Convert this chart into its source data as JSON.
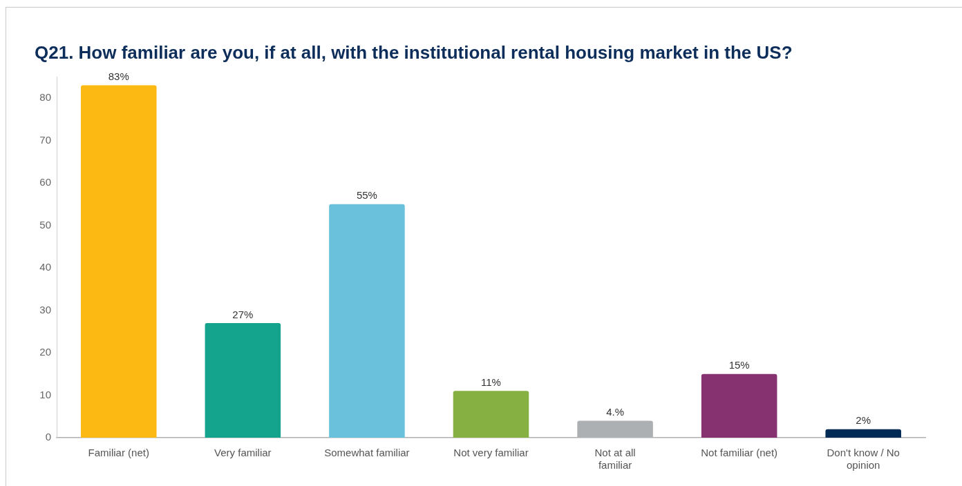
{
  "chart_data": {
    "type": "bar",
    "title": "Q21. How familiar are you, if at all, with the institutional rental housing market in the US?",
    "categories": [
      "Familiar (net)",
      "Very familiar",
      "Somewhat familiar",
      "Not very familiar",
      "Not at all familiar",
      "Not familiar (net)",
      "Don't know / No opinion"
    ],
    "values": [
      83,
      27,
      55,
      11,
      4,
      15,
      2
    ],
    "value_labels": [
      "83%",
      "27%",
      "55%",
      "11%",
      "4.%",
      "15%",
      "2%"
    ],
    "colors": [
      "#fdb913",
      "#14a38c",
      "#69c1dc",
      "#86b041",
      "#adb0b3",
      "#863271",
      "#012b55"
    ],
    "ylim": [
      0,
      85
    ],
    "yticks": [
      0,
      10,
      20,
      30,
      40,
      50,
      60,
      70,
      80
    ],
    "grid": false,
    "legend": false
  }
}
